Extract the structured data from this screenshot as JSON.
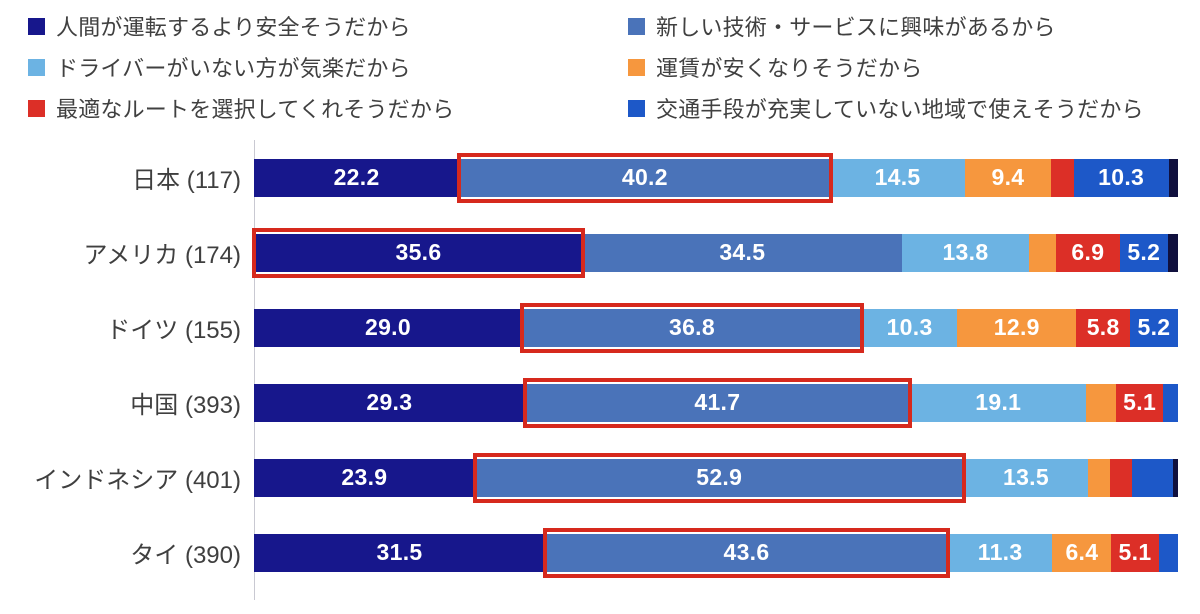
{
  "chart_data": {
    "type": "bar",
    "subtype": "horizontal-stacked",
    "unit": "%",
    "title": "",
    "xlabel": "",
    "ylabel": "",
    "xlim": [
      0,
      100
    ],
    "grid": false,
    "legend_position": "top",
    "highlight_border_color": "#D6291D",
    "extra_segment_color": "#10103E",
    "series_colors": [
      "#17178C",
      "#4A73B9",
      "#6CB3E3",
      "#F6973E",
      "#DC2F27",
      "#1D58C8"
    ],
    "legend": [
      {
        "label": "人間が運転するより安全そうだから",
        "color": "#17178C"
      },
      {
        "label": "新しい技術・サービスに興味があるから",
        "color": "#4A73B9"
      },
      {
        "label": "ドライバーがいない方が気楽だから",
        "color": "#6CB3E3"
      },
      {
        "label": "運賃が安くなりそうだから",
        "color": "#F6973E"
      },
      {
        "label": "最適なルートを選択してくれそうだから",
        "color": "#DC2F27"
      },
      {
        "label": "交通手段が充実していない地域で使えそうだから",
        "color": "#1D58C8"
      }
    ],
    "categories": [
      "日本 (117)",
      "アメリカ (174)",
      "ドイツ (155)",
      "中国 (393)",
      "インドネシア (401)",
      "タイ (390)"
    ],
    "rows": [
      {
        "label": "日本 (117)",
        "segments": [
          {
            "series": 0,
            "value": 22.2,
            "label": "22.2"
          },
          {
            "series": 1,
            "value": 40.2,
            "label": "40.2",
            "highlighted": true
          },
          {
            "series": 2,
            "value": 14.5,
            "label": "14.5"
          },
          {
            "series": 3,
            "value": 9.4,
            "label": "9.4"
          },
          {
            "series": 4,
            "value": 2.4,
            "label": null
          },
          {
            "series": 5,
            "value": 10.3,
            "label": "10.3"
          },
          {
            "series": "extra",
            "value": 1.0,
            "label": null
          }
        ]
      },
      {
        "label": "アメリカ (174)",
        "segments": [
          {
            "series": 0,
            "value": 35.6,
            "label": "35.6",
            "highlighted": true
          },
          {
            "series": 1,
            "value": 34.5,
            "label": "34.5"
          },
          {
            "series": 2,
            "value": 13.8,
            "label": "13.8"
          },
          {
            "series": 3,
            "value": 2.9,
            "label": null
          },
          {
            "series": 4,
            "value": 6.9,
            "label": "6.9"
          },
          {
            "series": 5,
            "value": 5.2,
            "label": "5.2"
          },
          {
            "series": "extra",
            "value": 1.1,
            "label": null
          }
        ]
      },
      {
        "label": "ドイツ (155)",
        "segments": [
          {
            "series": 0,
            "value": 29.0,
            "label": "29.0"
          },
          {
            "series": 1,
            "value": 36.8,
            "label": "36.8",
            "highlighted": true
          },
          {
            "series": 2,
            "value": 10.3,
            "label": "10.3"
          },
          {
            "series": 3,
            "value": 12.9,
            "label": "12.9"
          },
          {
            "series": 4,
            "value": 5.8,
            "label": "5.8"
          },
          {
            "series": 5,
            "value": 5.2,
            "label": "5.2"
          }
        ]
      },
      {
        "label": "中国 (393)",
        "segments": [
          {
            "series": 0,
            "value": 29.3,
            "label": "29.3"
          },
          {
            "series": 1,
            "value": 41.7,
            "label": "41.7",
            "highlighted": true
          },
          {
            "series": 2,
            "value": 19.1,
            "label": "19.1"
          },
          {
            "series": 3,
            "value": 3.2,
            "label": null
          },
          {
            "series": 4,
            "value": 5.1,
            "label": "5.1"
          },
          {
            "series": 5,
            "value": 1.6,
            "label": null
          }
        ]
      },
      {
        "label": "インドネシア (401)",
        "segments": [
          {
            "series": 0,
            "value": 23.9,
            "label": "23.9"
          },
          {
            "series": 1,
            "value": 52.9,
            "label": "52.9",
            "highlighted": true
          },
          {
            "series": 2,
            "value": 13.5,
            "label": "13.5"
          },
          {
            "series": 3,
            "value": 2.3,
            "label": null
          },
          {
            "series": 4,
            "value": 2.4,
            "label": null
          },
          {
            "series": 5,
            "value": 4.5,
            "label": null
          },
          {
            "series": "extra",
            "value": 0.5,
            "label": null
          }
        ]
      },
      {
        "label": "タイ (390)",
        "segments": [
          {
            "series": 0,
            "value": 31.5,
            "label": "31.5"
          },
          {
            "series": 1,
            "value": 43.6,
            "label": "43.6",
            "highlighted": true
          },
          {
            "series": 2,
            "value": 11.3,
            "label": "11.3"
          },
          {
            "series": 3,
            "value": 6.4,
            "label": "6.4"
          },
          {
            "series": 4,
            "value": 5.1,
            "label": "5.1"
          },
          {
            "series": 5,
            "value": 2.1,
            "label": null
          }
        ]
      }
    ]
  }
}
